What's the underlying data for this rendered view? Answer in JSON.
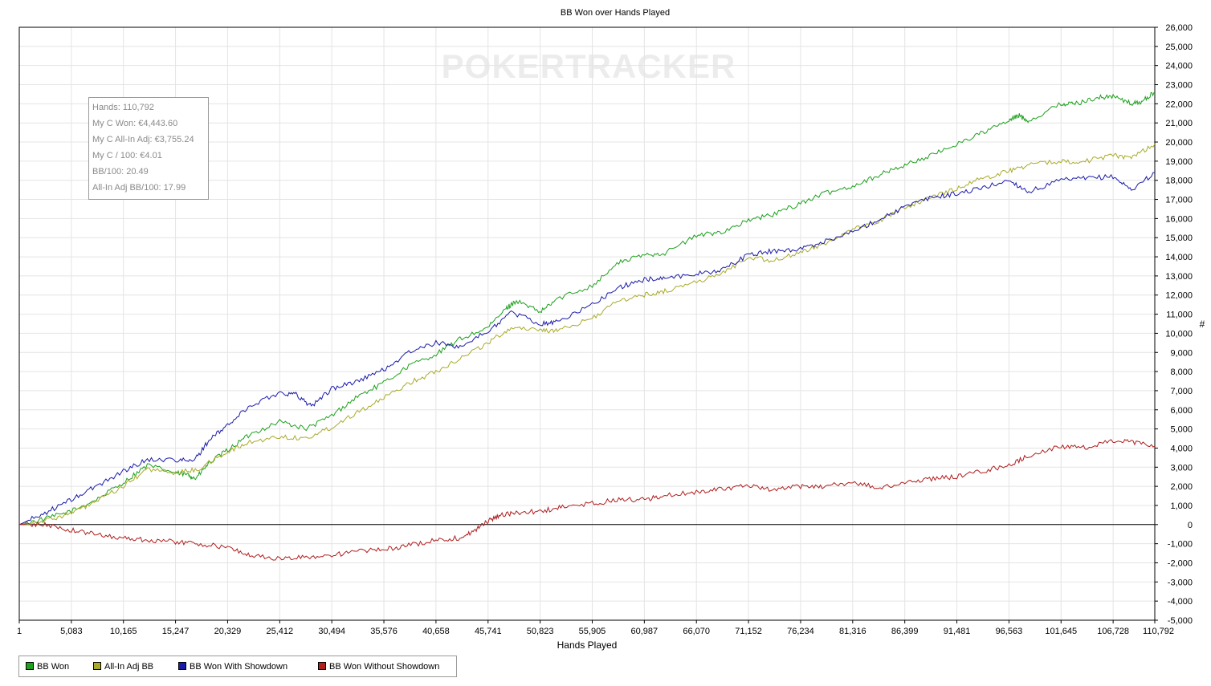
{
  "chart_data": {
    "type": "line",
    "title": "BB Won over Hands Played",
    "xlabel": "Hands Played",
    "ylabel": "#",
    "watermark": "POKERTRACKER",
    "xlim": [
      1,
      110792
    ],
    "ylim": [
      -5000,
      26000
    ],
    "x_ticks": [
      "1",
      "5,083",
      "10,165",
      "15,247",
      "20,329",
      "25,412",
      "30,494",
      "35,576",
      "40,658",
      "45,741",
      "50,823",
      "55,905",
      "60,987",
      "66,070",
      "71,152",
      "76,234",
      "81,316",
      "86,399",
      "91,481",
      "96,563",
      "101,645",
      "106,728",
      "110,792"
    ],
    "y_ticks": [
      -5000,
      -4000,
      -3000,
      -2000,
      -1000,
      0,
      1000,
      2000,
      3000,
      4000,
      5000,
      6000,
      7000,
      8000,
      9000,
      10000,
      11000,
      12000,
      13000,
      14000,
      15000,
      16000,
      17000,
      18000,
      19000,
      20000,
      21000,
      22000,
      23000,
      24000,
      25000,
      26000
    ],
    "grid": true,
    "legend_position": "bottom-left",
    "info_box": [
      "Hands: 110,792",
      "My C Won: €4,443.60",
      "My C All-In Adj: €3,755.24",
      "My C / 100: €4.01",
      "BB/100: 20.49",
      "All-In Adj BB/100: 17.99"
    ],
    "series": [
      {
        "name": "BB Won",
        "color": "#1ea01e",
        "x": [
          1,
          2500,
          5083,
          7500,
          10165,
          12500,
          15247,
          16500,
          17200,
          18500,
          20329,
          22500,
          25412,
          28000,
          30494,
          33000,
          35576,
          38000,
          40658,
          43000,
          45741,
          47500,
          48500,
          50823,
          52500,
          55905,
          58500,
          60987,
          63000,
          66070,
          68500,
          71152,
          73500,
          76234,
          78500,
          81316,
          84000,
          86399,
          89000,
          91481,
          94000,
          96563,
          97500,
          98500,
          101645,
          103000,
          105000,
          106728,
          108500,
          109500,
          110792
        ],
        "y": [
          0,
          300,
          700,
          1300,
          2200,
          3100,
          2700,
          2600,
          2400,
          3200,
          3900,
          4700,
          5400,
          5000,
          5700,
          6700,
          7400,
          8300,
          8900,
          9700,
          10300,
          11300,
          11700,
          11100,
          11800,
          12500,
          13700,
          14100,
          14200,
          15100,
          15300,
          15900,
          16200,
          16800,
          17300,
          17700,
          18300,
          18800,
          19300,
          19900,
          20500,
          21100,
          21400,
          21100,
          22000,
          22000,
          22300,
          22400,
          22000,
          22100,
          22600
        ]
      },
      {
        "name": "All-In Adj BB",
        "color": "#aaaa2a",
        "x": [
          1,
          2500,
          5083,
          7500,
          10165,
          12500,
          15247,
          17500,
          20329,
          22500,
          25412,
          28000,
          30494,
          33000,
          35576,
          38000,
          40658,
          43000,
          45741,
          48000,
          50823,
          52500,
          55905,
          58500,
          60987,
          63000,
          66070,
          68500,
          71152,
          73500,
          76234,
          78500,
          81316,
          84000,
          86399,
          89000,
          91481,
          94000,
          96563,
          98500,
          101645,
          104000,
          106728,
          108500,
          110792
        ],
        "y": [
          0,
          200,
          600,
          1200,
          2000,
          2900,
          2700,
          2900,
          3800,
          4300,
          4600,
          4500,
          5100,
          5900,
          6600,
          7400,
          8000,
          8700,
          9500,
          10300,
          10200,
          10100,
          10800,
          11700,
          12000,
          12200,
          12700,
          13100,
          14000,
          13800,
          14200,
          14700,
          15400,
          15900,
          16600,
          17100,
          17600,
          18100,
          18500,
          18800,
          19000,
          19000,
          19300,
          19200,
          19900
        ]
      },
      {
        "name": "BB Won With Showdown",
        "color": "#1a1aaa",
        "x": [
          1,
          2500,
          5083,
          7500,
          10165,
          12500,
          15247,
          17000,
          18500,
          20329,
          22500,
          25412,
          27000,
          28500,
          30494,
          33000,
          35576,
          38000,
          40658,
          43000,
          45741,
          48000,
          50823,
          52500,
          55905,
          58500,
          60987,
          63000,
          66070,
          68500,
          71152,
          73500,
          76234,
          78500,
          81316,
          84000,
          86399,
          89000,
          91481,
          94000,
          96563,
          98500,
          101645,
          104000,
          106728,
          108500,
          110792
        ],
        "y": [
          0,
          600,
          1300,
          2000,
          2800,
          3400,
          3400,
          3300,
          4400,
          5200,
          6200,
          6900,
          6800,
          6200,
          7100,
          7500,
          8100,
          9000,
          9500,
          9300,
          10100,
          11100,
          10500,
          10600,
          11500,
          12400,
          12800,
          12900,
          13100,
          13300,
          14100,
          14300,
          14400,
          14800,
          15300,
          16000,
          16600,
          17100,
          17300,
          17600,
          18000,
          17400,
          18000,
          18100,
          18200,
          17500,
          18400
        ]
      },
      {
        "name": "BB Won Without Showdown",
        "color": "#b01e1e",
        "x": [
          1,
          2500,
          5083,
          7500,
          10165,
          12500,
          15247,
          17500,
          20329,
          22500,
          25412,
          28000,
          30494,
          33000,
          35576,
          38000,
          40658,
          43000,
          44500,
          45741,
          47000,
          48500,
          50823,
          53000,
          55905,
          58500,
          60987,
          63000,
          66070,
          68500,
          71152,
          73500,
          76234,
          78500,
          81316,
          84000,
          86399,
          89000,
          91481,
          94000,
          96563,
          98500,
          101645,
          104000,
          106728,
          108500,
          110792
        ],
        "y": [
          0,
          0,
          -300,
          -500,
          -700,
          -800,
          -900,
          -1000,
          -1200,
          -1600,
          -1800,
          -1700,
          -1600,
          -1400,
          -1300,
          -1100,
          -800,
          -700,
          -300,
          200,
          500,
          600,
          700,
          900,
          1100,
          1300,
          1300,
          1500,
          1700,
          1900,
          2000,
          1800,
          2000,
          2000,
          2200,
          1900,
          2200,
          2400,
          2500,
          2800,
          3100,
          3600,
          4100,
          4000,
          4400,
          4300,
          4100
        ]
      }
    ]
  }
}
